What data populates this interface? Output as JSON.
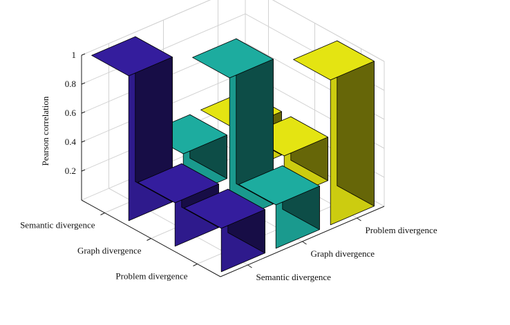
{
  "chart_data": {
    "type": "bar3d",
    "zlabel": "Pearson correlation",
    "zlim": [
      0,
      1
    ],
    "z_ticks": [
      "0.2",
      "0.4",
      "0.6",
      "0.8",
      "1"
    ],
    "row_categories": [
      "Semantic divergence",
      "Graph divergence",
      "Problem divergence"
    ],
    "column_categories": [
      "Semantic divergence",
      "Graph divergence",
      "Problem divergence"
    ],
    "series": [
      {
        "column": "Semantic divergence",
        "color": "#2e1a8c",
        "values": [
          1.0,
          0.3,
          0.3
        ]
      },
      {
        "column": "Graph divergence",
        "color": "#1a9a8e",
        "values": [
          0.3,
          1.0,
          0.3
        ]
      },
      {
        "column": "Problem divergence",
        "color": "#cccc10",
        "values": [
          0.3,
          0.3,
          1.0
        ]
      }
    ],
    "grid": true
  }
}
